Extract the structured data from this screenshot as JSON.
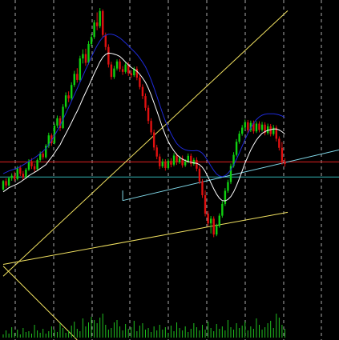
{
  "chart_data": {
    "type": "candlestick",
    "title": "",
    "xlabel": "",
    "ylabel": "",
    "grid": true,
    "legend": "none",
    "colors": {
      "background": "#000000",
      "grid": "#c8c8c8",
      "bull": "#10d010",
      "bear": "#e01010",
      "ma_white": "#ffffff",
      "ma_blue": "#1e2ad8",
      "trendline_yellow": "#f0e060",
      "horizontal_red": "#e02020",
      "horizontal_cyan": "#30b0b0",
      "channel_cyan": "#80d8e8",
      "volume": "#20c020"
    },
    "ylim": [
      0,
      100
    ],
    "volume_max": 40,
    "x_count": 118,
    "bars": [
      [
        44.8,
        47.6,
        44.5,
        47.3
      ],
      [
        47.3,
        48.1,
        45.2,
        46.0
      ],
      [
        46.0,
        48.6,
        45.6,
        48.2
      ],
      [
        48.2,
        49.6,
        47.4,
        48.9
      ],
      [
        48.9,
        50.1,
        47.3,
        47.9
      ],
      [
        47.9,
        51.8,
        47.5,
        51.3
      ],
      [
        51.3,
        52.0,
        48.8,
        49.5
      ],
      [
        49.5,
        50.3,
        47.5,
        48.4
      ],
      [
        48.4,
        51.2,
        48.0,
        50.7
      ],
      [
        50.7,
        53.8,
        50.3,
        53.2
      ],
      [
        53.2,
        54.1,
        50.9,
        51.7
      ],
      [
        51.7,
        52.5,
        50.1,
        50.8
      ],
      [
        50.8,
        54.1,
        50.5,
        53.6
      ],
      [
        53.6,
        56.1,
        53.0,
        55.5
      ],
      [
        55.5,
        56.2,
        53.7,
        54.4
      ],
      [
        54.4,
        58.3,
        54.0,
        57.8
      ],
      [
        57.8,
        61.7,
        57.2,
        60.9
      ],
      [
        60.9,
        61.5,
        57.8,
        58.6
      ],
      [
        58.6,
        64.4,
        58.2,
        63.8
      ],
      [
        63.8,
        66.8,
        63.1,
        66.0
      ],
      [
        66.0,
        66.7,
        62.2,
        63.1
      ],
      [
        63.1,
        70.2,
        62.8,
        69.4
      ],
      [
        69.4,
        73.7,
        68.9,
        72.8
      ],
      [
        72.8,
        74.0,
        70.8,
        71.9
      ],
      [
        71.9,
        76.7,
        71.3,
        75.9
      ],
      [
        75.9,
        80.1,
        75.3,
        79.2
      ],
      [
        79.2,
        80.9,
        76.6,
        77.4
      ],
      [
        77.4,
        84.6,
        76.9,
        83.8
      ],
      [
        83.8,
        86.5,
        82.3,
        85.1
      ],
      [
        85.1,
        86.7,
        81.6,
        82.5
      ],
      [
        82.5,
        89.0,
        82.0,
        88.1
      ],
      [
        88.1,
        91.1,
        87.4,
        90.2
      ],
      [
        90.2,
        95.2,
        89.6,
        94.5
      ],
      [
        94.5,
        97.5,
        92.2,
        93.4
      ],
      [
        93.4,
        98.8,
        92.8,
        97.9
      ],
      [
        97.9,
        98.4,
        90.0,
        90.8
      ],
      [
        90.8,
        91.5,
        86.3,
        87.2
      ],
      [
        87.2,
        88.0,
        81.1,
        82.0
      ],
      [
        82.0,
        82.8,
        77.5,
        78.3
      ],
      [
        78.3,
        81.6,
        77.7,
        80.8
      ],
      [
        80.8,
        83.5,
        80.2,
        82.9
      ],
      [
        82.9,
        83.6,
        79.8,
        80.6
      ],
      [
        80.6,
        81.5,
        78.9,
        79.8
      ],
      [
        79.8,
        82.6,
        79.3,
        82.0
      ],
      [
        82.0,
        82.7,
        78.6,
        79.4
      ],
      [
        79.4,
        80.3,
        78.0,
        78.8
      ],
      [
        78.8,
        81.3,
        78.3,
        80.7
      ],
      [
        80.7,
        81.4,
        77.3,
        78.1
      ],
      [
        78.1,
        78.8,
        74.6,
        75.3
      ],
      [
        75.3,
        76.1,
        71.7,
        72.6
      ],
      [
        72.6,
        73.4,
        68.2,
        69.1
      ],
      [
        69.1,
        69.9,
        64.3,
        65.2
      ],
      [
        65.2,
        66.0,
        61.0,
        61.8
      ],
      [
        61.8,
        62.6,
        56.4,
        57.3
      ],
      [
        57.3,
        58.1,
        53.8,
        54.6
      ],
      [
        54.6,
        55.4,
        50.9,
        51.7
      ],
      [
        51.7,
        53.9,
        51.2,
        53.1
      ],
      [
        53.1,
        53.8,
        50.4,
        51.2
      ],
      [
        51.2,
        54.0,
        50.7,
        53.3
      ],
      [
        53.3,
        54.1,
        51.4,
        52.2
      ],
      [
        52.2,
        55.6,
        51.7,
        54.9
      ],
      [
        54.9,
        55.6,
        52.1,
        52.9
      ],
      [
        52.9,
        54.8,
        52.4,
        54.1
      ],
      [
        54.1,
        54.9,
        51.3,
        52.0
      ],
      [
        52.0,
        53.8,
        51.5,
        53.1
      ],
      [
        53.1,
        55.5,
        52.6,
        54.8
      ],
      [
        54.8,
        55.5,
        51.6,
        52.4
      ],
      [
        52.4,
        54.2,
        51.9,
        53.6
      ],
      [
        53.6,
        54.4,
        50.2,
        51.0
      ],
      [
        51.0,
        51.7,
        46.4,
        47.2
      ],
      [
        47.2,
        47.9,
        42.3,
        43.1
      ],
      [
        43.1,
        44.5,
        36.8,
        37.6
      ],
      [
        37.6,
        38.4,
        33.9,
        34.7
      ],
      [
        34.7,
        36.9,
        31.7,
        36.1
      ],
      [
        36.1,
        36.8,
        30.6,
        31.4
      ],
      [
        31.4,
        34.6,
        30.9,
        33.9
      ],
      [
        33.9,
        37.7,
        33.4,
        37.0
      ],
      [
        37.0,
        41.3,
        36.4,
        40.5
      ],
      [
        40.5,
        45.2,
        39.9,
        44.4
      ],
      [
        44.4,
        47.7,
        43.8,
        47.0
      ],
      [
        47.0,
        52.5,
        46.4,
        51.8
      ],
      [
        51.8,
        55.9,
        51.3,
        55.1
      ],
      [
        55.1,
        59.8,
        54.6,
        59.0
      ],
      [
        59.0,
        62.2,
        58.4,
        61.4
      ],
      [
        61.4,
        64.0,
        60.8,
        63.2
      ],
      [
        63.2,
        65.6,
        62.6,
        64.8
      ],
      [
        64.8,
        65.5,
        61.6,
        62.4
      ],
      [
        62.4,
        65.3,
        61.9,
        64.6
      ],
      [
        64.6,
        65.3,
        61.4,
        62.1
      ],
      [
        62.1,
        65.1,
        61.6,
        64.4
      ],
      [
        64.4,
        65.1,
        61.8,
        62.5
      ],
      [
        62.5,
        64.9,
        62.0,
        64.1
      ],
      [
        64.1,
        64.8,
        60.9,
        61.6
      ],
      [
        61.6,
        64.4,
        61.1,
        63.6
      ],
      [
        63.6,
        64.3,
        60.6,
        61.3
      ],
      [
        61.3,
        64.0,
        60.8,
        63.2
      ],
      [
        63.2,
        63.9,
        59.1,
        59.9
      ],
      [
        59.9,
        60.6,
        56.4,
        57.2
      ],
      [
        57.2,
        58.9,
        52.2,
        53.0
      ],
      [
        53.0,
        54.1,
        51.6,
        52.4
      ]
    ],
    "volume": [
      4,
      9,
      5,
      13,
      6,
      10,
      4,
      12,
      7,
      8,
      5,
      16,
      9,
      6,
      11,
      5,
      8,
      14,
      10,
      7,
      18,
      12,
      6,
      9,
      15,
      20,
      11,
      8,
      24,
      14,
      19,
      26,
      22,
      18,
      25,
      30,
      16,
      10,
      12,
      19,
      22,
      14,
      9,
      17,
      11,
      13,
      21,
      8,
      15,
      18,
      10,
      12,
      7,
      14,
      9,
      16,
      10,
      13,
      6,
      15,
      8,
      19,
      12,
      9,
      14,
      7,
      11,
      18,
      13,
      9,
      16,
      10,
      20,
      12,
      8,
      17,
      11,
      14,
      9,
      22,
      13,
      10,
      18,
      12,
      15,
      20,
      9,
      14,
      11,
      24,
      16,
      10,
      13,
      18,
      21,
      12,
      30,
      25,
      16,
      11
    ],
    "ma_white": [
      44.1,
      44.7,
      45.3,
      45.7,
      46.1,
      46.5,
      47.0,
      47.6,
      48.2,
      48.9,
      49.4,
      49.9,
      50.4,
      51.0,
      51.6,
      52.2,
      53.3,
      54.4,
      55.6,
      56.9,
      58.1,
      59.8,
      61.4,
      63.0,
      64.7,
      66.5,
      68.1,
      69.9,
      71.9,
      73.7,
      75.5,
      77.4,
      79.3,
      81.0,
      82.8,
      84.2,
      85.0,
      85.4,
      85.3,
      85.1,
      84.8,
      84.4,
      83.6,
      82.7,
      81.9,
      81.1,
      80.6,
      80.0,
      79.1,
      78.0,
      76.7,
      75.0,
      72.9,
      70.6,
      68.2,
      65.7,
      63.2,
      61.0,
      59.1,
      57.6,
      56.3,
      55.2,
      54.4,
      53.8,
      53.4,
      53.1,
      52.9,
      52.7,
      52.6,
      52.2,
      51.4,
      50.2,
      48.5,
      46.8,
      45.0,
      43.4,
      42.2,
      41.5,
      41.4,
      41.8,
      42.7,
      44.1,
      45.9,
      48.0,
      50.3,
      52.7,
      54.6,
      56.5,
      58.1,
      59.5,
      60.6,
      61.5,
      62.0,
      62.4,
      62.6,
      62.8,
      62.8,
      62.5,
      62.0,
      61.3
    ],
    "ma_blue": [
      49.5,
      49.9,
      50.3,
      50.6,
      50.9,
      51.2,
      51.6,
      52.1,
      52.6,
      53.2,
      53.7,
      54.2,
      54.8,
      55.5,
      56.2,
      57.0,
      58.1,
      59.4,
      60.8,
      62.3,
      63.8,
      65.6,
      67.4,
      69.2,
      71.1,
      73.0,
      74.8,
      76.7,
      78.6,
      80.5,
      82.3,
      84.2,
      86.0,
      87.6,
      89.0,
      90.1,
      90.7,
      91.0,
      91.0,
      90.8,
      90.4,
      89.9,
      89.2,
      88.4,
      87.6,
      86.7,
      85.9,
      85.0,
      83.9,
      82.7,
      81.3,
      79.5,
      77.4,
      75.1,
      72.6,
      70.0,
      67.5,
      65.2,
      63.2,
      61.4,
      59.8,
      58.5,
      57.6,
      57.0,
      56.6,
      56.4,
      56.3,
      56.3,
      56.4,
      56.2,
      55.6,
      54.6,
      53.2,
      51.8,
      50.5,
      49.4,
      48.8,
      48.6,
      48.9,
      49.6,
      50.7,
      52.1,
      53.8,
      55.7,
      57.7,
      59.7,
      61.5,
      63.1,
      64.5,
      65.6,
      66.4,
      66.9,
      67.2,
      67.3,
      67.3,
      67.3,
      67.2,
      67.0,
      66.7,
      66.2
    ],
    "lines": {
      "yellow_trend_up": [
        [
          0,
          19.0
        ],
        [
          100,
          98.0
        ]
      ],
      "yellow_trend_low": [
        [
          0,
          22.5
        ],
        [
          100,
          38.0
        ]
      ],
      "yellow_descending": [
        [
          0,
          22.0
        ],
        [
          26,
          0.0
        ]
      ],
      "red_level": 53.0,
      "cyan_level": 48.5,
      "cyan_channel": [
        [
          42,
          41.5
        ],
        [
          100,
          53.0
        ]
      ]
    }
  }
}
